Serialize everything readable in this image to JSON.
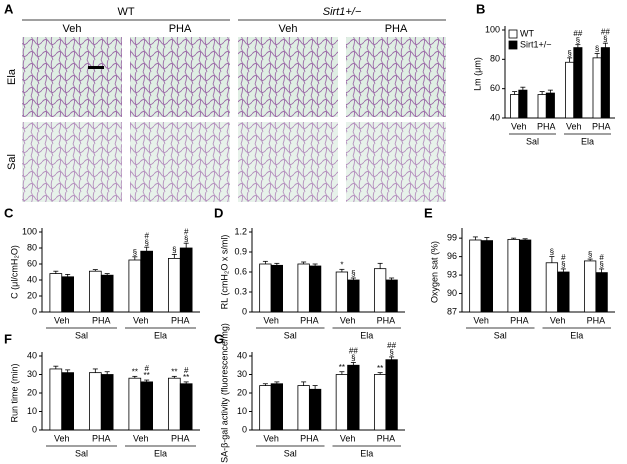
{
  "panel_a": {
    "label": "A",
    "genotypes": [
      "WT",
      "Sirt1+/−"
    ],
    "treatments": [
      "Veh",
      "PHA",
      "Veh",
      "PHA"
    ],
    "rows": [
      "Ela",
      "Sal"
    ]
  },
  "chart_data": [
    {
      "type": "bar",
      "label": "B",
      "ylabel": "Lm (μm)",
      "ylim": [
        40,
        100
      ],
      "yticks": [
        40,
        60,
        80,
        100
      ],
      "categories": [
        "Veh",
        "PHA",
        "Veh",
        "PHA"
      ],
      "groups": [
        "Sal",
        "Ela"
      ],
      "series": [
        {
          "name": "WT",
          "color": "#ffffff",
          "values": [
            56,
            56,
            78,
            81
          ],
          "errors": [
            2,
            2,
            3,
            3
          ],
          "annotations": [
            null,
            null,
            [
              "§"
            ],
            [
              "§"
            ]
          ]
        },
        {
          "name": "Sirt1+/−",
          "color": "#000000",
          "values": [
            59,
            57,
            88,
            88
          ],
          "errors": [
            2,
            2,
            2,
            3
          ],
          "annotations": [
            null,
            null,
            [
              "##",
              "§"
            ],
            [
              "##",
              "§"
            ]
          ]
        }
      ]
    },
    {
      "type": "bar",
      "label": "C",
      "ylabel": "C (μl/cmH₂O)",
      "ylim": [
        0,
        100
      ],
      "yticks": [
        0,
        20,
        40,
        60,
        80,
        100
      ],
      "categories": [
        "Veh",
        "PHA",
        "Veh",
        "PHA"
      ],
      "groups": [
        "Sal",
        "Ela"
      ],
      "series": [
        {
          "color": "#ffffff",
          "values": [
            48,
            51,
            65,
            67
          ],
          "errors": [
            3,
            2,
            4,
            5
          ],
          "annotations": [
            null,
            null,
            [
              "§"
            ],
            [
              "§"
            ]
          ]
        },
        {
          "color": "#000000",
          "values": [
            44,
            46,
            76,
            80
          ],
          "errors": [
            3,
            2,
            5,
            6
          ],
          "annotations": [
            null,
            null,
            [
              "#",
              "§"
            ],
            [
              "#",
              "§"
            ]
          ]
        }
      ]
    },
    {
      "type": "bar",
      "label": "D",
      "ylabel": "RL (cmH₂O x s/ml)",
      "ylim": [
        0,
        1.2
      ],
      "yticks": [
        0,
        0.3,
        0.6,
        0.9,
        1.2
      ],
      "categories": [
        "Veh",
        "PHA",
        "Veh",
        "PHA"
      ],
      "groups": [
        "Sal",
        "Ela"
      ],
      "series": [
        {
          "color": "#ffffff",
          "values": [
            0.72,
            0.72,
            0.6,
            0.65
          ],
          "errors": [
            0.04,
            0.03,
            0.04,
            0.08
          ],
          "annotations": [
            null,
            null,
            [
              "*"
            ],
            null
          ]
        },
        {
          "color": "#000000",
          "values": [
            0.7,
            0.69,
            0.48,
            0.48
          ],
          "errors": [
            0.03,
            0.03,
            0.03,
            0.03
          ],
          "annotations": [
            null,
            null,
            [
              "§"
            ],
            null
          ]
        }
      ]
    },
    {
      "type": "bar",
      "label": "E",
      "ylabel": "Oxygen sat (%)",
      "ylim": [
        87,
        100
      ],
      "yticks": [
        87,
        90,
        93,
        96,
        99
      ],
      "categories": [
        "Veh",
        "PHA",
        "Veh",
        "PHA"
      ],
      "groups": [
        "Sal",
        "Ela"
      ],
      "series": [
        {
          "color": "#ffffff",
          "values": [
            98.7,
            98.8,
            95,
            95.3
          ],
          "errors": [
            0.5,
            0.2,
            1,
            0.3
          ],
          "annotations": [
            null,
            null,
            [
              "§"
            ],
            [
              "§"
            ]
          ]
        },
        {
          "color": "#000000",
          "values": [
            98.6,
            98.7,
            93.5,
            93.4
          ],
          "errors": [
            0.5,
            0.2,
            0.5,
            0.6
          ],
          "annotations": [
            null,
            null,
            [
              "#",
              "§"
            ],
            [
              "#",
              "§"
            ]
          ]
        }
      ]
    },
    {
      "type": "bar",
      "label": "F",
      "ylabel": "Run time (min)",
      "ylim": [
        0,
        40
      ],
      "yticks": [
        0,
        10,
        20,
        30,
        40
      ],
      "categories": [
        "Veh",
        "PHA",
        "Veh",
        "PHA"
      ],
      "groups": [
        "Sal",
        "Ela"
      ],
      "series": [
        {
          "color": "#ffffff",
          "values": [
            33,
            31,
            28,
            28
          ],
          "errors": [
            1.5,
            2,
            1,
            1
          ],
          "annotations": [
            null,
            null,
            [
              "**"
            ],
            [
              "**"
            ]
          ]
        },
        {
          "color": "#000000",
          "values": [
            31,
            30,
            26,
            25
          ],
          "errors": [
            1.5,
            1.5,
            1,
            1
          ],
          "annotations": [
            null,
            null,
            [
              "#",
              "**"
            ],
            [
              "#",
              "**"
            ]
          ]
        }
      ]
    },
    {
      "type": "bar",
      "label": "G",
      "ylabel": "SA-β-gal activity (fluorescence/mg)",
      "ylim": [
        0,
        40
      ],
      "yticks": [
        0,
        10,
        20,
        30,
        40
      ],
      "categories": [
        "Veh",
        "PHA",
        "Veh",
        "PHA"
      ],
      "groups": [
        "Sal",
        "Ela"
      ],
      "series": [
        {
          "color": "#ffffff",
          "values": [
            24,
            24,
            30,
            30
          ],
          "errors": [
            1,
            2,
            1.5,
            1
          ],
          "annotations": [
            null,
            null,
            [
              "**"
            ],
            [
              "**"
            ]
          ]
        },
        {
          "color": "#000000",
          "values": [
            25,
            22,
            35,
            38
          ],
          "errors": [
            1,
            2,
            1.5,
            1.5
          ],
          "annotations": [
            null,
            null,
            [
              "##",
              "§"
            ],
            [
              "##",
              "§"
            ]
          ]
        }
      ]
    }
  ]
}
